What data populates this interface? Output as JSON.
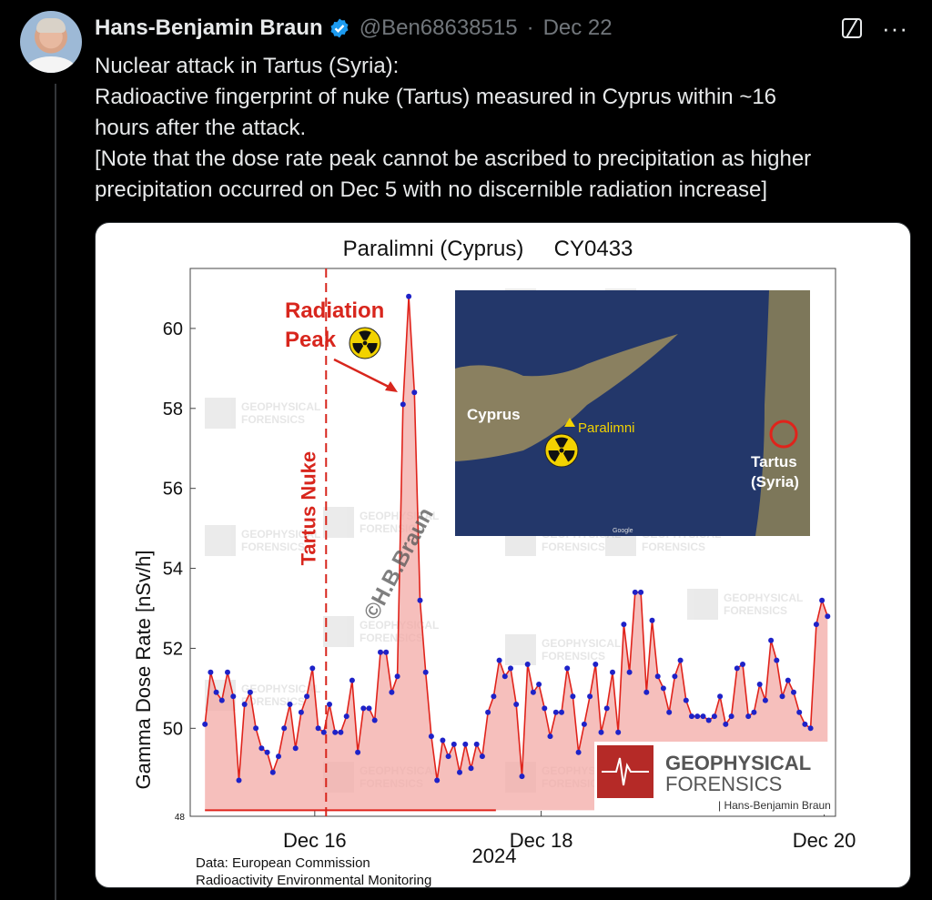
{
  "author": {
    "name": "Hans-Benjamin Braun",
    "handle": "@Ben68638515",
    "separator": "·",
    "date": "Dec 22"
  },
  "icons": {
    "verified": "verified-badge-icon",
    "grok": "grok-icon",
    "more": "more-icon"
  },
  "colors": {
    "verified": "#1d9bf0",
    "series": "#e0231b",
    "markers": "#1e22c8",
    "nuke_line": "#d8261d"
  },
  "tweet_lines": [
    "Nuclear attack in Tartus (Syria):",
    "Radioactive fingerprint of nuke (Tartus) measured in Cyprus within ~16",
    "hours after the attack.",
    "[Note that the dose rate peak cannot be ascribed to precipitation as higher",
    "precipitation occurred on Dec 5 with no discernible radiation increase]"
  ],
  "more_glyph": "···",
  "chart_data": {
    "type": "area",
    "title": "Paralimni (Cyprus)     CY0433",
    "ylabel": "Gamma Dose Rate [nSv/h]",
    "xlabel": "2024",
    "ylim": [
      47.8,
      61.5
    ],
    "yticks": [
      50,
      52,
      54,
      56,
      58,
      60
    ],
    "ytick_small": "48",
    "xticks": [
      {
        "label": "Dec 16",
        "x": 15.5
      },
      {
        "label": "Dec 18",
        "x": 17.5
      },
      {
        "label": "Dec 20",
        "x": 20.0
      }
    ],
    "xlim": [
      14.4,
      20.1
    ],
    "nuke_time": 15.6,
    "annotations": {
      "nuke": "Tartus Nuke",
      "peak_line1": "Radiation",
      "peak_line2": "Peak",
      "watermark_diag": "©H.B.Braun"
    },
    "watermark_brand": [
      "GEOPHYSICAL",
      "FORENSICS"
    ],
    "brand_byline": "| Hans-Benjamin Braun",
    "source_line1": "Data: European Commission",
    "source_line2": "Radioactivity Environmental Monitoring",
    "map_labels": {
      "cyprus": "Cyprus",
      "paralimni": "Paralimni",
      "tartus1": "Tartus",
      "tartus2": "(Syria)",
      "google": "Google"
    },
    "x": [
      14.53,
      14.58,
      14.63,
      14.68,
      14.73,
      14.78,
      14.83,
      14.88,
      14.93,
      14.98,
      15.03,
      15.08,
      15.13,
      15.18,
      15.23,
      15.28,
      15.33,
      15.38,
      15.43,
      15.48,
      15.53,
      15.58,
      15.63,
      15.68,
      15.73,
      15.78,
      15.83,
      15.88,
      15.93,
      15.98,
      16.03,
      16.08,
      16.13,
      16.18,
      16.23,
      16.28,
      16.33,
      16.38,
      16.43,
      16.48,
      16.53,
      16.58,
      16.63,
      16.68,
      16.73,
      16.78,
      16.83,
      16.88,
      16.93,
      16.98,
      17.03,
      17.08,
      17.13,
      17.18,
      17.23,
      17.28,
      17.33,
      17.38,
      17.43,
      17.48,
      17.53,
      17.58,
      17.63,
      17.68,
      17.73,
      17.78,
      17.83,
      17.88,
      17.93,
      17.98,
      18.03,
      18.08,
      18.13,
      18.18,
      18.23,
      18.28,
      18.33,
      18.38,
      18.43,
      18.48,
      18.53,
      18.58,
      18.63,
      18.68,
      18.73,
      18.78,
      18.83,
      18.88,
      18.93,
      18.98,
      19.03,
      19.08,
      19.13,
      19.18,
      19.23,
      19.28,
      19.33,
      19.38,
      19.43,
      19.48,
      19.53,
      19.58,
      19.63,
      19.68,
      19.73,
      19.78,
      19.83,
      19.88,
      19.93,
      19.98,
      20.03
    ],
    "y": [
      50.1,
      51.4,
      50.9,
      50.7,
      51.4,
      50.8,
      48.7,
      50.6,
      50.9,
      50.0,
      49.5,
      49.4,
      48.9,
      49.3,
      50.0,
      50.6,
      49.5,
      50.4,
      50.8,
      51.5,
      50.0,
      49.9,
      50.6,
      49.9,
      49.9,
      50.3,
      51.2,
      49.4,
      50.5,
      50.5,
      50.2,
      51.9,
      51.9,
      50.9,
      51.3,
      58.1,
      60.8,
      58.4,
      53.2,
      51.4,
      49.8,
      48.7,
      49.7,
      49.3,
      49.6,
      48.9,
      49.6,
      49.0,
      49.6,
      49.3,
      50.4,
      50.8,
      51.7,
      51.3,
      51.5,
      50.6,
      48.8,
      51.6,
      50.9,
      51.1,
      50.5,
      49.8,
      50.4,
      50.4,
      51.5,
      50.8,
      49.4,
      50.1,
      50.8,
      51.6,
      49.9,
      50.5,
      51.4,
      49.9,
      52.6,
      51.4,
      53.4,
      53.4,
      50.9,
      52.7,
      51.3,
      51.0,
      50.4,
      51.3,
      51.7,
      50.7,
      50.3,
      50.3,
      50.3,
      50.2,
      50.3,
      50.8,
      50.1,
      50.3,
      51.5,
      51.6,
      50.3,
      50.4,
      51.1,
      50.7,
      52.2,
      51.7,
      50.8,
      51.2,
      50.9,
      50.4,
      50.1,
      50.0,
      52.6,
      53.2,
      52.8
    ]
  }
}
